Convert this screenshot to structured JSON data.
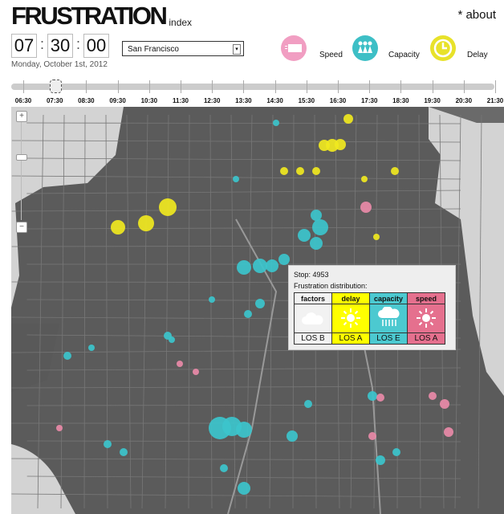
{
  "header": {
    "title": "FRUSTRATION",
    "subtitle": "index",
    "about": "* about"
  },
  "time": {
    "hours": "07",
    "minutes": "30",
    "seconds": "00",
    "sep": ":",
    "date": "Monday, October 1st, 2012"
  },
  "city_select": {
    "value": "San Francisco"
  },
  "legend": [
    {
      "label": "Speed",
      "color": "#f19ec2",
      "icon": "truck-icon"
    },
    {
      "label": "Capacity",
      "color": "#3dbfc6",
      "icon": "people-icon"
    },
    {
      "label": "Delay",
      "color": "#e8e22a",
      "icon": "clock-icon"
    }
  ],
  "timeline": {
    "selected": "07:30",
    "labels": [
      "06:30",
      "07:30",
      "08:30",
      "09:30",
      "10:30",
      "11:30",
      "12:30",
      "13:30",
      "14:30",
      "15:30",
      "16:30",
      "17:30",
      "18:30",
      "19:30",
      "20:30",
      "21:30"
    ]
  },
  "map_zoom": {
    "plus": "+",
    "minus": "−"
  },
  "popup": {
    "stop": "Stop: 4953",
    "heading": "Frustration distribution:",
    "columns": [
      {
        "name": "factors",
        "icon": "cloud-icon",
        "los": "LOS B",
        "color": "#f2f2f2"
      },
      {
        "name": "delay",
        "icon": "sun-icon",
        "los": "LOS A",
        "color": "#ffff00"
      },
      {
        "name": "capacity",
        "icon": "rain-cloud-icon",
        "los": "LOS E",
        "color": "#4cc9d0"
      },
      {
        "name": "speed",
        "icon": "sun-icon",
        "los": "LOS A",
        "color": "#e5708e"
      }
    ]
  }
}
